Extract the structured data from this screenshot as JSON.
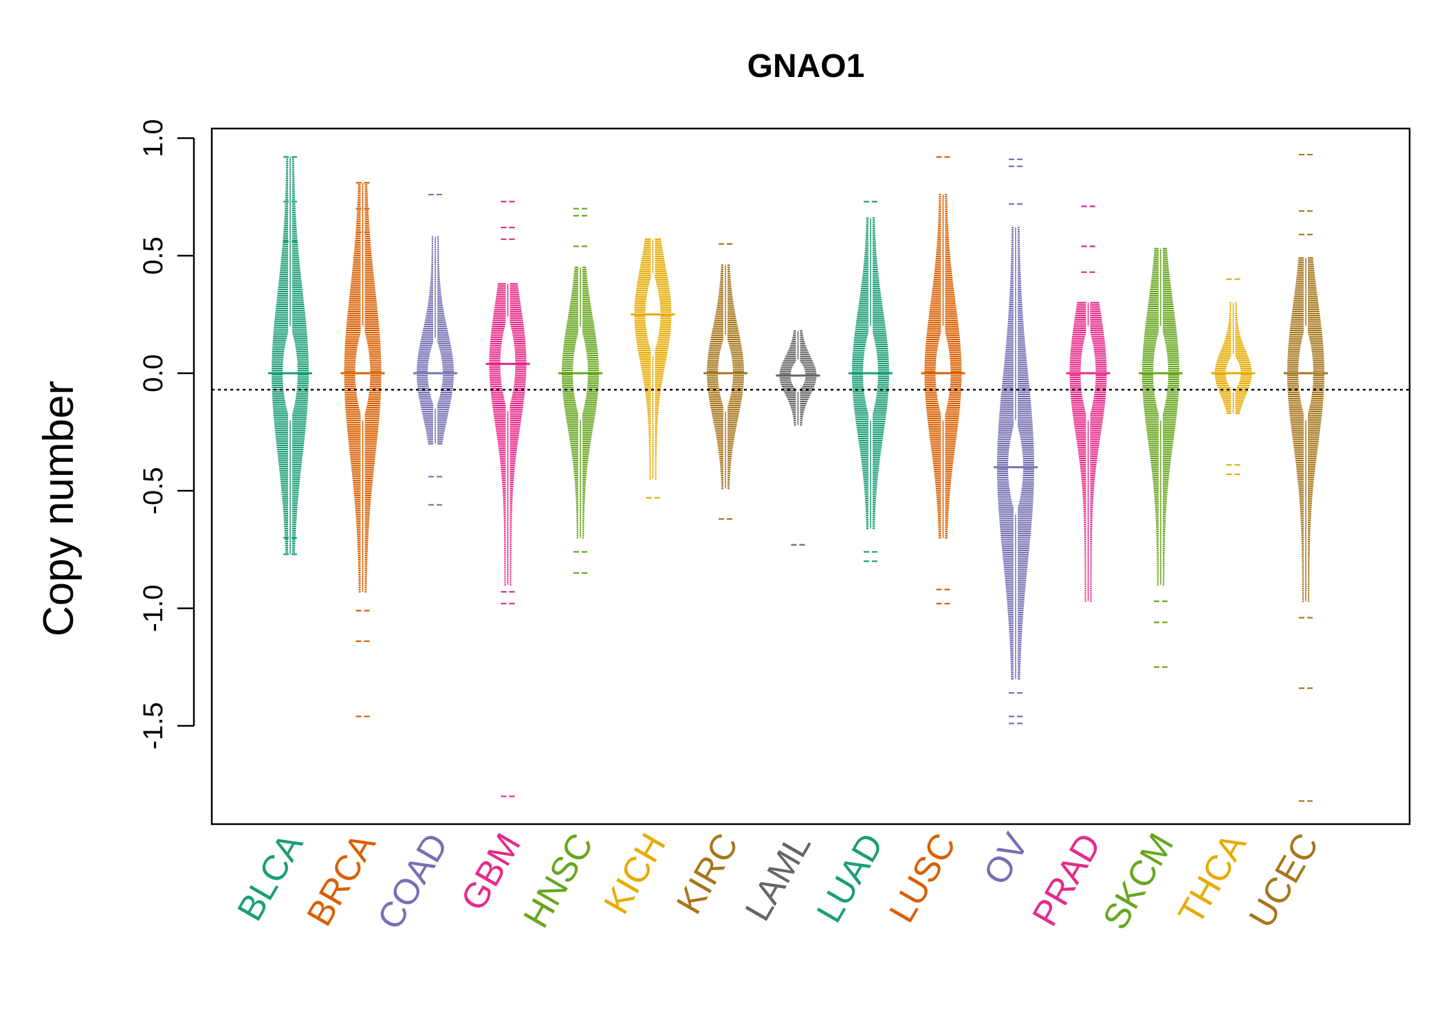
{
  "chart_data": {
    "type": "beanplot",
    "title": "GNAO1",
    "xlabel": "",
    "ylabel": "Copy number",
    "ylim": [
      -1.95,
      1.03
    ],
    "yticks": [
      "1.0",
      "0.5",
      "0.0",
      "-0.5",
      "-1.0",
      "-1.5"
    ],
    "ytick_values": [
      1.0,
      0.5,
      0.0,
      -0.5,
      -1.0,
      -1.5
    ],
    "reference_line": -0.07,
    "grid": false,
    "legend": "none",
    "categories": [
      "BLCA",
      "BRCA",
      "COAD",
      "GBM",
      "HNSC",
      "KICH",
      "KIRC",
      "LAML",
      "LUAD",
      "LUSC",
      "OV",
      "PRAD",
      "SKCM",
      "THCA",
      "UCEC"
    ],
    "colors": [
      "#1b9e77",
      "#d95f02",
      "#7570b3",
      "#e7298a",
      "#66a61e",
      "#e6ab02",
      "#a6761d",
      "#666666",
      "#1b9e77",
      "#d95f02",
      "#7570b3",
      "#e7298a",
      "#66a61e",
      "#e6ab02",
      "#a6761d"
    ],
    "series": [
      {
        "category": "BLCA",
        "min": -0.77,
        "max": 0.92,
        "median": 0.0,
        "outliers": [
          0.92,
          0.73,
          0.56,
          -0.7,
          -0.77
        ]
      },
      {
        "category": "BRCA",
        "min": -0.93,
        "max": 0.81,
        "median": 0.0,
        "outliers": [
          0.81,
          0.7,
          0.6,
          -1.01,
          -1.14,
          -1.46
        ]
      },
      {
        "category": "COAD",
        "min": -0.3,
        "max": 0.58,
        "median": 0.0,
        "outliers": [
          0.76,
          -0.44,
          -0.56
        ]
      },
      {
        "category": "GBM",
        "min": -0.9,
        "max": 0.38,
        "median": 0.04,
        "outliers": [
          0.73,
          0.62,
          0.57,
          -0.93,
          -0.98,
          -1.8
        ]
      },
      {
        "category": "HNSC",
        "min": -0.7,
        "max": 0.45,
        "median": 0.0,
        "outliers": [
          0.7,
          0.67,
          0.54,
          -0.76,
          -0.85
        ]
      },
      {
        "category": "KICH",
        "min": -0.45,
        "max": 0.57,
        "median": 0.25,
        "outliers": [
          -0.53
        ]
      },
      {
        "category": "KIRC",
        "min": -0.49,
        "max": 0.46,
        "median": 0.0,
        "outliers": [
          0.55,
          -0.62
        ]
      },
      {
        "category": "LAML",
        "min": -0.22,
        "max": 0.18,
        "median": -0.01,
        "outliers": [
          -0.73
        ]
      },
      {
        "category": "LUAD",
        "min": -0.66,
        "max": 0.66,
        "median": 0.0,
        "outliers": [
          0.73,
          -0.76,
          -0.8
        ]
      },
      {
        "category": "LUSC",
        "min": -0.7,
        "max": 0.76,
        "median": 0.0,
        "outliers": [
          0.92,
          -0.92,
          -0.98
        ]
      },
      {
        "category": "OV",
        "min": -1.3,
        "max": 0.62,
        "median": -0.4,
        "outliers": [
          0.91,
          0.88,
          0.72,
          -1.36,
          -1.46,
          -1.49
        ]
      },
      {
        "category": "PRAD",
        "min": -0.97,
        "max": 0.3,
        "median": 0.0,
        "outliers": [
          0.71,
          0.54,
          0.43
        ]
      },
      {
        "category": "SKCM",
        "min": -0.9,
        "max": 0.53,
        "median": 0.0,
        "outliers": [
          -0.97,
          -1.06,
          -1.25
        ]
      },
      {
        "category": "THCA",
        "min": -0.17,
        "max": 0.3,
        "median": 0.0,
        "outliers": [
          0.4,
          -0.39,
          -0.43
        ]
      },
      {
        "category": "UCEC",
        "min": -0.97,
        "max": 0.49,
        "median": 0.0,
        "outliers": [
          0.93,
          0.69,
          0.59,
          -1.04,
          -1.34,
          -1.82
        ]
      }
    ]
  }
}
